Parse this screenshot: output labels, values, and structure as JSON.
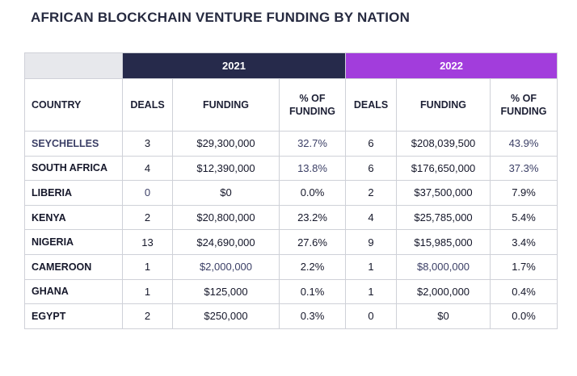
{
  "title": "AFRICAN BLOCKCHAIN VENTURE FUNDING BY NATION",
  "years": {
    "y2021": "2021",
    "y2022": "2022"
  },
  "headers": {
    "country": "COUNTRY",
    "deals": "DEALS",
    "funding": "FUNDING",
    "pct": "% OF FUNDING"
  },
  "colors": {
    "y2021": "#262a4b",
    "y2022": "#a23ddc"
  },
  "rows": [
    {
      "country": "SEYCHELLES",
      "d21": "3",
      "f21": "$29,300,000",
      "p21": "32.7%",
      "d22": "6",
      "f22": "$208,039,500",
      "p22": "43.9%"
    },
    {
      "country": "SOUTH AFRICA",
      "d21": "4",
      "f21": "$12,390,000",
      "p21": "13.8%",
      "d22": "6",
      "f22": "$176,650,000",
      "p22": "37.3%"
    },
    {
      "country": "LIBERIA",
      "d21": "0",
      "f21": "$0",
      "p21": "0.0%",
      "d22": "2",
      "f22": "$37,500,000",
      "p22": "7.9%"
    },
    {
      "country": "KENYA",
      "d21": "2",
      "f21": "$20,800,000",
      "p21": "23.2%",
      "d22": "4",
      "f22": "$25,785,000",
      "p22": "5.4%"
    },
    {
      "country": "NIGERIA",
      "d21": "13",
      "f21": "$24,690,000",
      "p21": "27.6%",
      "d22": "9",
      "f22": "$15,985,000",
      "p22": "3.4%"
    },
    {
      "country": "CAMEROON",
      "d21": "1",
      "f21": "$2,000,000",
      "p21": "2.2%",
      "d22": "1",
      "f22": "$8,000,000",
      "p22": "1.7%"
    },
    {
      "country": "GHANA",
      "d21": "1",
      "f21": "$125,000",
      "p21": "0.1%",
      "d22": "1",
      "f22": "$2,000,000",
      "p22": "0.4%"
    },
    {
      "country": "EGYPT",
      "d21": "2",
      "f21": "$250,000",
      "p21": "0.3%",
      "d22": "0",
      "f22": "$0",
      "p22": "0.0%"
    }
  ]
}
